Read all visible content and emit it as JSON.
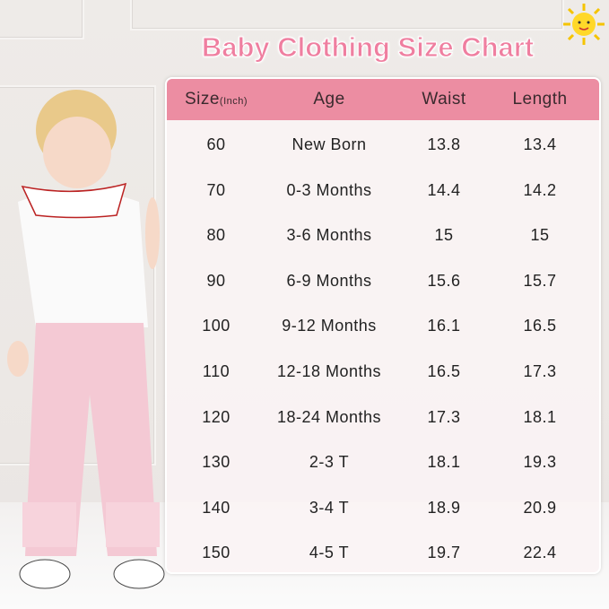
{
  "title": "Baby Clothing Size Chart",
  "colors": {
    "header": "#ec8da2",
    "title": "#ef7fa0"
  },
  "icons": {
    "sun": "sun-icon"
  },
  "table": {
    "headers": {
      "size": "Size",
      "size_unit": "(Inch)",
      "age": "Age",
      "waist": "Waist",
      "length": "Length"
    },
    "rows": [
      {
        "size": "60",
        "age": "New Born",
        "waist": "13.8",
        "length": "13.4"
      },
      {
        "size": "70",
        "age": "0-3 Months",
        "waist": "14.4",
        "length": "14.2"
      },
      {
        "size": "80",
        "age": "3-6 Months",
        "waist": "15",
        "length": "15"
      },
      {
        "size": "90",
        "age": "6-9 Months",
        "waist": "15.6",
        "length": "15.7"
      },
      {
        "size": "100",
        "age": "9-12 Months",
        "waist": "16.1",
        "length": "16.5"
      },
      {
        "size": "110",
        "age": "12-18 Months",
        "waist": "16.5",
        "length": "17.3"
      },
      {
        "size": "120",
        "age": "18-24 Months",
        "waist": "17.3",
        "length": "18.1"
      },
      {
        "size": "130",
        "age": "2-3 T",
        "waist": "18.1",
        "length": "19.3"
      },
      {
        "size": "140",
        "age": "3-4 T",
        "waist": "18.9",
        "length": "20.9"
      },
      {
        "size": "150",
        "age": "4-5 T",
        "waist": "19.7",
        "length": "22.4"
      }
    ]
  }
}
